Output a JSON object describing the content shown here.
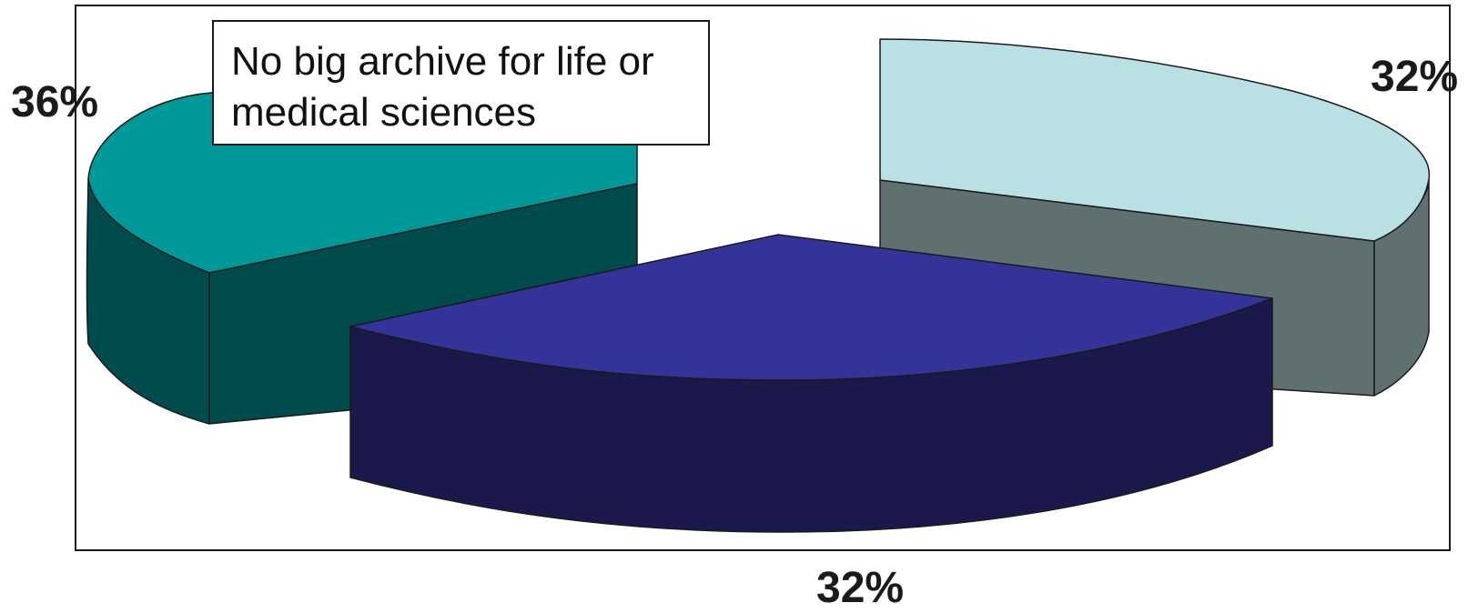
{
  "chart_data": {
    "type": "pie",
    "style": "3d-exploded",
    "title": "",
    "slices": [
      {
        "label": "No big archive for life or medical sciences",
        "value": 36,
        "value_label": "36%",
        "top_color": "#009999",
        "side_color": "#004C4C"
      },
      {
        "label": "",
        "value": 32,
        "value_label": "32%",
        "top_color": "#B9E0E3",
        "side_color": "#5F7070"
      },
      {
        "label": "",
        "value": 32,
        "value_label": "32%",
        "top_color": "#333399",
        "side_color": "#1B194B"
      }
    ],
    "annotation": {
      "line1": "No big archive for life or",
      "line2": "medical sciences"
    },
    "legend": "none",
    "grid": false
  }
}
